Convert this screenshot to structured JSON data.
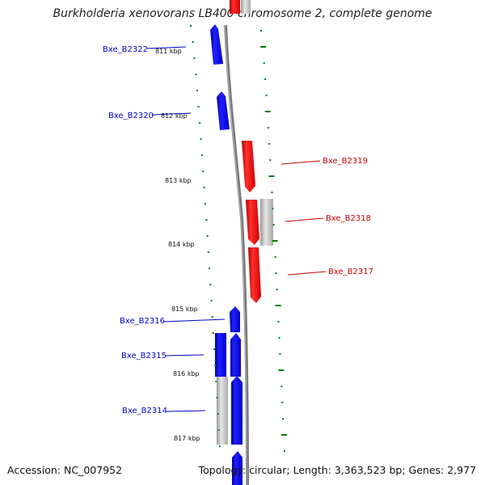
{
  "title": "Burkholderia xenovorans LB400 chromosome 2, complete genome",
  "footer": {
    "accession": "Accession: NC_007952",
    "summary": "Topology: circular; Length: 3,363,523 bp; Genes: 2,977"
  },
  "scale_labels": [
    "811 kbp",
    "812 kbp",
    "813 kbp",
    "814 kbp",
    "815 kbp",
    "816 kbp",
    "817 kbp"
  ],
  "genes": [
    {
      "label": "Bxe_B2322",
      "strand": "minus",
      "color": "#0000ff"
    },
    {
      "label": "Bxe_B2320",
      "strand": "minus",
      "color": "#0000ff"
    },
    {
      "label": "Bxe_B2319",
      "strand": "plus",
      "color": "#ff0000"
    },
    {
      "label": "Bxe_B2318",
      "strand": "plus",
      "color": "#ff0000"
    },
    {
      "label": "Bxe_B2317",
      "strand": "plus",
      "color": "#ff0000"
    },
    {
      "label": "Bxe_B2316",
      "strand": "minus",
      "color": "#0000ff"
    },
    {
      "label": "Bxe_B2315",
      "strand": "minus",
      "color": "#0000ff"
    },
    {
      "label": "Bxe_B2314",
      "strand": "minus",
      "color": "#0000ff"
    }
  ],
  "colors": {
    "minus_strand": "#0000ff",
    "plus_strand": "#ff0000",
    "pseudo_gene": "#bbbbbb",
    "backbone": "#808080",
    "scale_dots": "#008000"
  }
}
